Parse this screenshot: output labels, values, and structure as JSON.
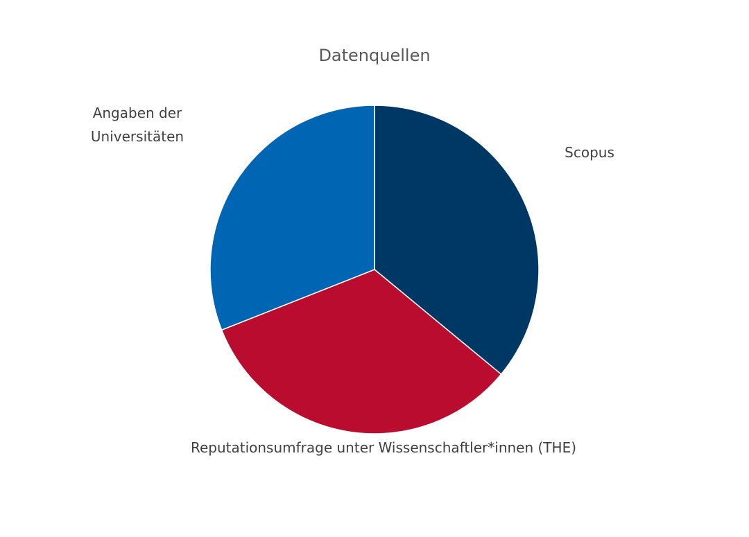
{
  "chart_data": {
    "type": "pie",
    "title": "Datenquellen",
    "categories": [
      "Scopus",
      "Reputationsumfrage unter Wissenschaftler*innen (THE)",
      "Angaben der Universitäten"
    ],
    "values": [
      36,
      33,
      31
    ],
    "colors": [
      "#003865",
      "#ba0c2f",
      "#0066b3"
    ]
  }
}
